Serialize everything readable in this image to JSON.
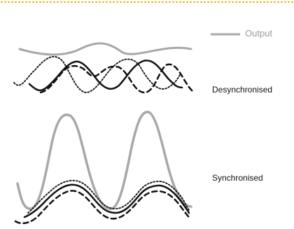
{
  "legend": {
    "output_label": "Output"
  },
  "labels": {
    "desynchronised": "Desynchronised",
    "synchronised": "Synchronised"
  },
  "colors": {
    "border_dots": "#e0b200",
    "output": "#a8a8a8",
    "signals": "#111111",
    "label_text": "#111111",
    "legend_text": "#9a9a9a"
  }
}
